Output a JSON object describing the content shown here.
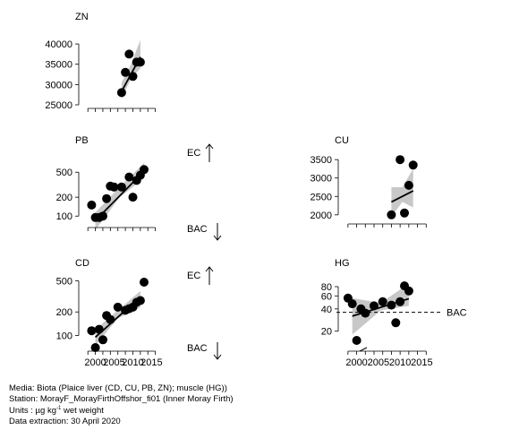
{
  "chart_data": [
    {
      "type": "scatter",
      "title": "ZN",
      "x": [
        2007,
        2008,
        2009,
        2010,
        2011,
        2012
      ],
      "y": [
        28000,
        33000,
        37500,
        32000,
        35500,
        35500
      ],
      "ylim": [
        25000,
        42000
      ],
      "yticks": [
        25000,
        30000,
        35000,
        40000
      ],
      "ytick_labels": [
        "25000",
        "30000",
        "35000",
        "40000"
      ],
      "xlim": [
        1997,
        2018
      ],
      "xtick_labels": [],
      "trend": {
        "x": [
          2007,
          2012
        ],
        "y": [
          28300,
          36800
        ]
      },
      "band": {
        "x": [
          2007,
          2009.5,
          2012
        ],
        "lower": [
          26500,
          31500,
          34000
        ],
        "upper": [
          30500,
          35000,
          41000
        ]
      }
    },
    {
      "type": "scatter",
      "title": "PB",
      "x": [
        1999,
        2000,
        2001,
        2002,
        2003,
        2004,
        2005,
        2007,
        2009,
        2010,
        2011,
        2012,
        2013
      ],
      "y": [
        150,
        95,
        95,
        100,
        190,
        300,
        290,
        290,
        420,
        200,
        370,
        450,
        550
      ],
      "ylim": [
        75,
        700
      ],
      "log": true,
      "yticks": [
        100,
        200,
        500
      ],
      "ytick_labels": [
        "100",
        "200",
        "500"
      ],
      "xlim": [
        1997,
        2018
      ],
      "xtick_labels": [],
      "trend": {
        "x": [
          2000,
          2013
        ],
        "y": [
          85,
          520
        ]
      },
      "band": {
        "x": [
          2000,
          2006.5,
          2013
        ],
        "lower": [
          60,
          200,
          400
        ],
        "upper": [
          115,
          290,
          700
        ]
      }
    },
    {
      "type": "scatter",
      "title": "CU",
      "x": [
        2008,
        2010,
        2011,
        2012,
        2013
      ],
      "y": [
        2000,
        3500,
        2050,
        2800,
        3350
      ],
      "ylim": [
        1850,
        3650
      ],
      "yticks": [
        2000,
        2500,
        3000,
        3500
      ],
      "ytick_labels": [
        "2000",
        "2500",
        "3000",
        "3500"
      ],
      "xlim": [
        1997,
        2018
      ],
      "xtick_labels": [],
      "trend": {
        "x": [
          2008,
          2013
        ],
        "y": [
          2350,
          2650
        ]
      },
      "band": {
        "x": [
          2008,
          2010.5,
          2013
        ],
        "lower": [
          1950,
          2350,
          2200
        ],
        "upper": [
          2750,
          2750,
          3250
        ]
      }
    },
    {
      "type": "scatter",
      "title": "CD",
      "x": [
        1999,
        2000,
        2001,
        2002,
        2003,
        2004,
        2006,
        2008,
        2009,
        2010,
        2011,
        2012,
        2013
      ],
      "y": [
        115,
        70,
        120,
        88,
        180,
        160,
        230,
        210,
        220,
        230,
        265,
        280,
        480
      ],
      "ylim": [
        70,
        520
      ],
      "log": true,
      "yticks": [
        100,
        200,
        500
      ],
      "ytick_labels": [
        "100",
        "200",
        "500"
      ],
      "xlim": [
        1997,
        2018
      ],
      "xtick_labels": [
        "2000",
        "2005",
        "2010",
        "2015"
      ],
      "trend": {
        "x": [
          2000,
          2012
        ],
        "y": [
          95,
          310
        ]
      },
      "band": {
        "x": [
          2000,
          2006,
          2012
        ],
        "lower": [
          75,
          165,
          230
        ],
        "upper": [
          120,
          210,
          370
        ]
      }
    },
    {
      "type": "scatter",
      "title": "HG",
      "x": [
        1998,
        1999,
        2000,
        2001,
        2002,
        2004,
        2006,
        2008,
        2009,
        2010,
        2011,
        2012
      ],
      "y": [
        56,
        47,
        15,
        40,
        35,
        44,
        50,
        45,
        26,
        50,
        82,
        70
      ],
      "ylim": [
        12,
        100
      ],
      "log": true,
      "yticks": [
        20,
        40,
        60,
        80
      ],
      "ytick_labels": [
        "20",
        "40",
        "60",
        "80"
      ],
      "xlim": [
        1997,
        2018
      ],
      "xtick_labels": [
        "2000",
        "2005",
        "2010",
        "2015"
      ],
      "trend": {
        "x": [
          1999,
          2012
        ],
        "y": [
          32,
          55
        ]
      },
      "band": {
        "x": [
          1999,
          2005.5,
          2012
        ],
        "lower": [
          18,
          38,
          44
        ],
        "upper": [
          56,
          48,
          88
        ]
      }
    }
  ],
  "annotations": {
    "ec": "EC",
    "bac": "BAC",
    "hg_bac": "BAC"
  },
  "caption": {
    "media": "Media: Biota (Plaice liver (CD, CU, PB, ZN); muscle (HG))",
    "station": "Station: MorayF_MorayFirthOffshor_fi01 (Inner Moray Firth)",
    "units_prefix": "Units : µg kg",
    "units_sup": "-1",
    "units_suffix": " wet weight",
    "extraction": "Data extraction: 30 April 2020"
  }
}
